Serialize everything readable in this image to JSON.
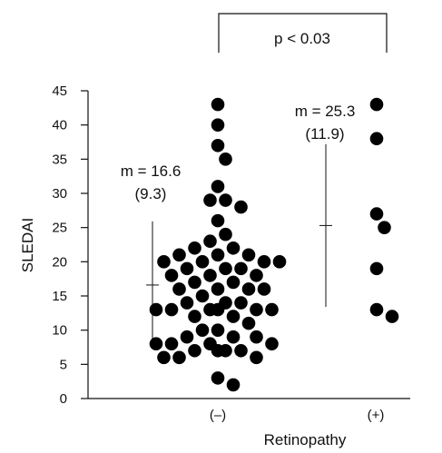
{
  "chart_data": {
    "type": "scatter",
    "xlabel": "Retinopathy",
    "ylabel": "SLEDAI",
    "categories": [
      "(–)",
      "(+)"
    ],
    "ylim": [
      0,
      45
    ],
    "yticks": [
      0,
      5,
      10,
      15,
      20,
      25,
      30,
      35,
      40,
      45
    ],
    "grid": false,
    "series": [
      {
        "category": "(–)",
        "values": [
          43,
          40,
          37,
          35,
          31,
          29,
          29,
          28,
          26,
          24,
          23,
          22,
          22,
          21,
          21,
          21,
          20,
          20,
          20,
          20,
          19,
          19,
          19,
          18,
          18,
          18,
          17,
          17,
          16,
          16,
          16,
          16,
          15,
          14,
          14,
          14,
          13,
          13,
          13,
          13,
          13,
          13,
          12,
          12,
          11,
          10,
          10,
          9,
          9,
          9,
          8,
          8,
          8,
          8,
          7,
          7,
          7,
          7,
          6,
          6,
          6,
          3,
          2
        ],
        "mean": 16.6,
        "sd": 9.3,
        "mean_label": "m = 16.6",
        "sd_label": "(9.3)"
      },
      {
        "category": "(+)",
        "values": [
          43,
          38,
          27,
          25,
          19,
          13,
          12
        ],
        "mean": 25.3,
        "sd": 11.9,
        "mean_label": "m = 25.3",
        "sd_label": "(11.9)"
      }
    ],
    "significance": {
      "label": "p < 0.03",
      "between": [
        "(–)",
        "(+)"
      ]
    }
  }
}
